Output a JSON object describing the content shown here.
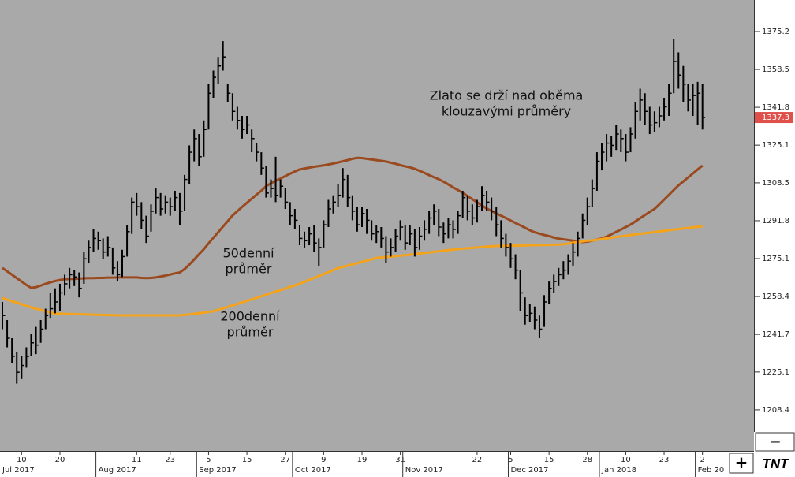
{
  "chart_data": {
    "type": "ohlc",
    "categories": [
      null,
      null,
      null,
      null,
      "10",
      null,
      null,
      null,
      null,
      null,
      null,
      null,
      "20",
      null,
      null,
      null,
      null,
      null,
      null,
      null,
      null,
      null,
      null,
      null,
      null,
      null,
      null,
      null,
      "11",
      null,
      null,
      null,
      null,
      null,
      null,
      "23",
      null,
      null,
      null,
      null,
      null,
      null,
      null,
      "5",
      null,
      null,
      null,
      null,
      null,
      null,
      null,
      "15",
      null,
      null,
      null,
      null,
      null,
      null,
      null,
      "27",
      null,
      null,
      null,
      null,
      null,
      null,
      null,
      "9",
      null,
      null,
      null,
      null,
      null,
      null,
      null,
      "19",
      null,
      null,
      null,
      null,
      null,
      null,
      null,
      "31",
      null,
      null,
      null,
      null,
      null,
      null,
      null,
      null,
      null,
      null,
      null,
      null,
      null,
      null,
      null,
      "22",
      null,
      null,
      null,
      null,
      null,
      null,
      "5",
      null,
      null,
      null,
      null,
      null,
      null,
      null,
      "15",
      null,
      null,
      null,
      null,
      null,
      null,
      null,
      "28",
      null,
      null,
      null,
      null,
      null,
      null,
      null,
      "10",
      null,
      null,
      null,
      null,
      null,
      null,
      null,
      "23",
      null,
      null,
      null,
      null,
      null,
      null,
      null,
      "2"
    ],
    "months": [
      "Jul 2017",
      null,
      null,
      null,
      null,
      null,
      null,
      null,
      null,
      null,
      null,
      null,
      null,
      null,
      null,
      null,
      null,
      null,
      null,
      null,
      "Aug 2017",
      null,
      null,
      null,
      null,
      null,
      null,
      null,
      null,
      null,
      null,
      null,
      null,
      null,
      null,
      null,
      null,
      null,
      null,
      null,
      null,
      "Sep 2017",
      null,
      null,
      null,
      null,
      null,
      null,
      null,
      null,
      null,
      null,
      null,
      null,
      null,
      null,
      null,
      null,
      null,
      null,
      null,
      "Oct 2017",
      null,
      null,
      null,
      null,
      null,
      null,
      null,
      null,
      null,
      null,
      null,
      null,
      null,
      null,
      null,
      null,
      null,
      null,
      null,
      null,
      null,
      null,
      "Nov 2017",
      null,
      null,
      null,
      null,
      null,
      null,
      null,
      null,
      null,
      null,
      null,
      null,
      null,
      null,
      null,
      null,
      null,
      null,
      null,
      null,
      null,
      "Dec 2017",
      null,
      null,
      null,
      null,
      null,
      null,
      null,
      null,
      null,
      null,
      null,
      null,
      null,
      null,
      null,
      null,
      null,
      null,
      "Jan 2018",
      null,
      null,
      null,
      null,
      null,
      null,
      null,
      null,
      null,
      null,
      null,
      null,
      null,
      null,
      null,
      null,
      null,
      null,
      null,
      "Feb 20",
      null
    ],
    "high": [
      1256,
      1248,
      1240,
      1234,
      1232,
      1236,
      1242,
      1245,
      1248,
      1253,
      1260,
      1262,
      1264,
      1268,
      1271,
      1270,
      1269,
      1278,
      1283,
      1288,
      1287,
      1284,
      1285,
      1280,
      1274,
      1279,
      1290,
      1302,
      1304,
      1300,
      1294,
      1299,
      1306,
      1304,
      1303,
      1302,
      1305,
      1304,
      1312,
      1325,
      1332,
      1330,
      1336,
      1352,
      1358,
      1364,
      1371,
      1352,
      1348,
      1342,
      1338,
      1338,
      1332,
      1326,
      1322,
      1316,
      1310,
      1320,
      1310,
      1306,
      1300,
      1297,
      1290,
      1287,
      1289,
      1290,
      1284,
      1292,
      1301,
      1303,
      1308,
      1315,
      1312,
      1303,
      1298,
      1298,
      1297,
      1292,
      1290,
      1289,
      1285,
      1284,
      1288,
      1292,
      1290,
      1290,
      1288,
      1289,
      1292,
      1296,
      1299,
      1297,
      1291,
      1293,
      1292,
      1296,
      1305,
      1303,
      1299,
      1301,
      1307,
      1305,
      1302,
      1298,
      1292,
      1286,
      1282,
      1277,
      1270,
      1258,
      1255,
      1254,
      1250,
      1259,
      1265,
      1268,
      1271,
      1274,
      1277,
      1282,
      1287,
      1295,
      1302,
      1310,
      1322,
      1326,
      1330,
      1329,
      1334,
      1332,
      1330,
      1333,
      1344,
      1350,
      1348,
      1342,
      1340,
      1342,
      1346,
      1352,
      1372,
      1366,
      1360,
      1352,
      1352,
      1353,
      1352
    ],
    "low": [
      1244,
      1236,
      1229,
      1220,
      1222,
      1227,
      1232,
      1233,
      1238,
      1244,
      1249,
      1251,
      1252,
      1259,
      1262,
      1263,
      1258,
      1264,
      1273,
      1278,
      1279,
      1275,
      1276,
      1268,
      1265,
      1267,
      1276,
      1286,
      1294,
      1288,
      1282,
      1287,
      1295,
      1294,
      1295,
      1294,
      1296,
      1290,
      1296,
      1308,
      1318,
      1316,
      1320,
      1332,
      1346,
      1352,
      1358,
      1344,
      1336,
      1332,
      1328,
      1330,
      1322,
      1318,
      1312,
      1302,
      1302,
      1300,
      1302,
      1297,
      1290,
      1288,
      1281,
      1280,
      1281,
      1278,
      1272,
      1280,
      1289,
      1295,
      1298,
      1302,
      1298,
      1292,
      1287,
      1289,
      1286,
      1283,
      1282,
      1280,
      1273,
      1276,
      1278,
      1283,
      1279,
      1281,
      1276,
      1279,
      1283,
      1286,
      1290,
      1285,
      1282,
      1284,
      1284,
      1286,
      1293,
      1292,
      1290,
      1291,
      1296,
      1296,
      1292,
      1285,
      1280,
      1276,
      1271,
      1266,
      1252,
      1246,
      1247,
      1244,
      1240,
      1245,
      1255,
      1260,
      1263,
      1266,
      1268,
      1272,
      1276,
      1284,
      1290,
      1298,
      1305,
      1314,
      1318,
      1320,
      1323,
      1322,
      1318,
      1322,
      1328,
      1336,
      1334,
      1330,
      1331,
      1333,
      1336,
      1338,
      1348,
      1350,
      1344,
      1340,
      1338,
      1334,
      1332
    ],
    "close": [
      1250,
      1240,
      1232,
      1225,
      1228,
      1232,
      1238,
      1237,
      1244,
      1250,
      1253,
      1256,
      1260,
      1264,
      1268,
      1267,
      1262,
      1275,
      1280,
      1284,
      1283,
      1278,
      1280,
      1271,
      1268,
      1276,
      1287,
      1300,
      1298,
      1292,
      1285,
      1296,
      1302,
      1297,
      1300,
      1298,
      1302,
      1296,
      1310,
      1322,
      1328,
      1320,
      1332,
      1348,
      1355,
      1360,
      1364,
      1348,
      1340,
      1336,
      1332,
      1334,
      1328,
      1322,
      1315,
      1304,
      1306,
      1303,
      1307,
      1300,
      1294,
      1292,
      1284,
      1283,
      1286,
      1282,
      1280,
      1290,
      1297,
      1300,
      1303,
      1310,
      1302,
      1296,
      1290,
      1295,
      1292,
      1286,
      1287,
      1284,
      1278,
      1280,
      1285,
      1289,
      1282,
      1286,
      1280,
      1285,
      1288,
      1293,
      1296,
      1289,
      1286,
      1290,
      1288,
      1294,
      1302,
      1296,
      1293,
      1298,
      1303,
      1300,
      1296,
      1290,
      1284,
      1280,
      1275,
      1270,
      1260,
      1250,
      1251,
      1248,
      1244,
      1256,
      1262,
      1265,
      1268,
      1270,
      1274,
      1278,
      1284,
      1292,
      1298,
      1306,
      1318,
      1322,
      1326,
      1325,
      1330,
      1328,
      1322,
      1330,
      1340,
      1345,
      1340,
      1334,
      1335,
      1338,
      1342,
      1348,
      1362,
      1356,
      1352,
      1345,
      1347,
      1348,
      1337.3
    ],
    "bar_color": "#000000",
    "series": [
      {
        "color": "#9a4a1e",
        "values": [
          1271,
          1269.5,
          1268,
          1266.5,
          1265,
          1263.5,
          1262.2,
          1262.5,
          1263.2,
          1264,
          1264.6,
          1265.2,
          1265.7,
          1266,
          1266.1,
          1266.2,
          1266.3,
          1266.4,
          1266.5,
          1266.5,
          1266.6,
          1266.6,
          1266.7,
          1266.7,
          1266.8,
          1266.8,
          1266.8,
          1266.8,
          1266.8,
          1266.6,
          1266.5,
          1266.6,
          1266.8,
          1267.2,
          1267.6,
          1268.1,
          1268.6,
          1269,
          1270.5,
          1272.5,
          1274.7,
          1277,
          1279.2,
          1281.8,
          1284.3,
          1286.7,
          1289.2,
          1291.6,
          1294.1,
          1296,
          1297.9,
          1299.7,
          1301.5,
          1303.3,
          1305,
          1307,
          1308.3,
          1309.4,
          1310.4,
          1311.5,
          1312.5,
          1313.5,
          1314.4,
          1314.8,
          1315.2,
          1315.6,
          1315.9,
          1316.2,
          1316.6,
          1317,
          1317.5,
          1318,
          1318.5,
          1319.1,
          1319.5,
          1319.4,
          1319.1,
          1318.8,
          1318.5,
          1318.2,
          1317.9,
          1317.4,
          1316.9,
          1316.3,
          1315.8,
          1315.3,
          1314.7,
          1313.8,
          1312.9,
          1311.9,
          1311,
          1310.1,
          1309,
          1307.8,
          1306.5,
          1305.3,
          1304.1,
          1302.7,
          1301.3,
          1299.9,
          1298.5,
          1297.2,
          1296.1,
          1295,
          1294,
          1293,
          1291.9,
          1290.8,
          1289.8,
          1288.7,
          1287.6,
          1286.7,
          1286.1,
          1285.5,
          1285,
          1284.4,
          1283.9,
          1283.6,
          1283.3,
          1283,
          1282.7,
          1282.4,
          1282.6,
          1283,
          1283.5,
          1284,
          1284.8,
          1285.8,
          1286.9,
          1287.9,
          1289,
          1290.1,
          1291.5,
          1292.9,
          1294.3,
          1295.7,
          1297,
          1299,
          1301.1,
          1303.2,
          1305.3,
          1307.4,
          1309.1,
          1310.9,
          1312.6,
          1314.4,
          1316.1
        ]
      },
      {
        "color": "#f5a31a",
        "values": [
          1257.7,
          1257,
          1256.3,
          1255.7,
          1255,
          1254.3,
          1253.6,
          1253,
          1252.5,
          1251.9,
          1251.4,
          1250.8,
          1250.8,
          1250.7,
          1250.7,
          1250.6,
          1250.6,
          1250.5,
          1250.5,
          1250.4,
          1250.3,
          1250.3,
          1250.2,
          1250.2,
          1250.1,
          1250.1,
          1250.1,
          1250.1,
          1250.1,
          1250.1,
          1250.1,
          1250.1,
          1250.1,
          1250.1,
          1250.1,
          1250.1,
          1250.1,
          1250.1,
          1250.3,
          1250.5,
          1250.8,
          1251,
          1251.3,
          1251.6,
          1251.9,
          1252.5,
          1253.2,
          1253.8,
          1254.5,
          1255.1,
          1255.8,
          1256.5,
          1257.1,
          1257.8,
          1258.5,
          1259.2,
          1259.9,
          1260.6,
          1261.2,
          1261.9,
          1262.6,
          1263.3,
          1264,
          1264.9,
          1265.7,
          1266.6,
          1267.4,
          1268.3,
          1269.1,
          1270,
          1270.9,
          1271.5,
          1272,
          1272.6,
          1273.1,
          1273.7,
          1274.2,
          1274.8,
          1275.4,
          1275.6,
          1275.8,
          1276,
          1276.2,
          1276.4,
          1276.6,
          1276.8,
          1277.1,
          1277.3,
          1277.6,
          1277.8,
          1278.1,
          1278.3,
          1278.6,
          1278.8,
          1279.1,
          1279.3,
          1279.5,
          1279.7,
          1279.8,
          1280,
          1280.2,
          1280.4,
          1280.5,
          1280.7,
          1280.7,
          1280.7,
          1280.8,
          1280.8,
          1280.9,
          1280.9,
          1281,
          1281,
          1281.1,
          1281.1,
          1281.2,
          1281.2,
          1281.3,
          1281.4,
          1281.7,
          1282.1,
          1282.4,
          1282.7,
          1283,
          1283.1,
          1283.4,
          1283.7,
          1284,
          1284.3,
          1284.6,
          1284.9,
          1285.2,
          1285.5,
          1285.8,
          1286,
          1286.3,
          1286.5,
          1286.8,
          1287.1,
          1287.3,
          1287.6,
          1287.9,
          1288.1,
          1288.4,
          1288.6,
          1288.9,
          1289.1,
          1289.3
        ]
      }
    ],
    "ylim": [
      1190.3,
      1389.1
    ],
    "yticks": [
      1208.4,
      1225.1,
      1241.7,
      1258.4,
      1275.1,
      1291.8,
      1308.5,
      1325.1,
      1341.8,
      1358.5,
      1375.2
    ],
    "last_price_color": "#e0504a",
    "annotations": [
      [
        "Zlato se drží nad oběma",
        "klouzavými průměry"
      ],
      [
        "50denní",
        "průměr"
      ],
      [
        "200denní",
        "průměr"
      ]
    ],
    "grid": false
  },
  "controls": {
    "zoom_out": "−",
    "zoom_in": "+",
    "logo": "TNT"
  }
}
